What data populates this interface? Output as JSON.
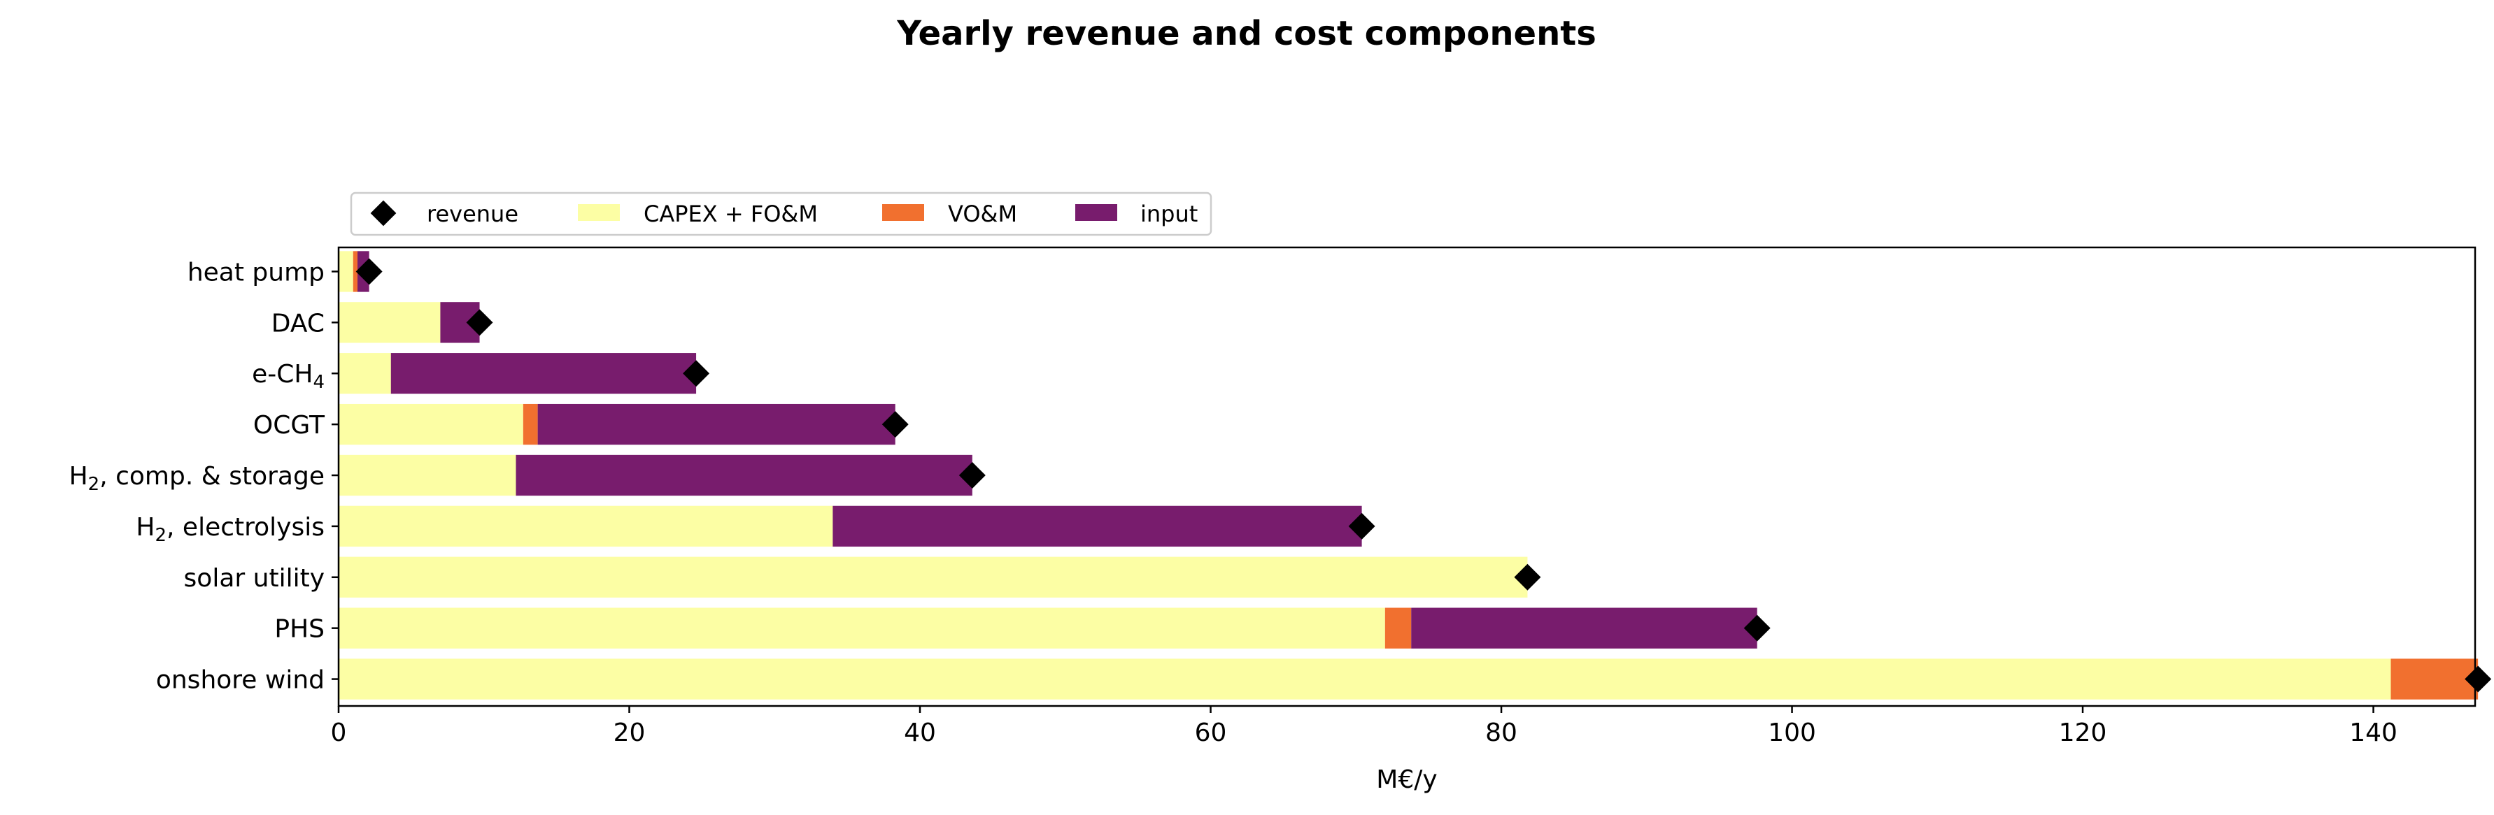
{
  "chart_data": {
    "type": "bar",
    "orientation": "horizontal",
    "stacked": true,
    "title": "Yearly revenue and cost components",
    "xlabel": "M€/y",
    "ylabel": "",
    "xlim": [
      0,
      147
    ],
    "xticks": [
      0,
      20,
      40,
      60,
      80,
      100,
      120,
      140
    ],
    "categories": [
      "heat pump",
      "DAC",
      "e-CH4",
      "OCGT",
      "H2, comp. & storage",
      "H2, electrolysis",
      "solar utility",
      "PHS",
      "onshore wind"
    ],
    "category_labels": [
      {
        "text": "heat pump",
        "sub": "",
        "rest": ""
      },
      {
        "text": "DAC",
        "sub": "",
        "rest": ""
      },
      {
        "text": "e-CH",
        "sub": "4",
        "rest": ""
      },
      {
        "text": "OCGT",
        "sub": "",
        "rest": ""
      },
      {
        "text": "H",
        "sub": "2",
        "rest": ", comp. & storage"
      },
      {
        "text": "H",
        "sub": "2",
        "rest": ", electrolysis"
      },
      {
        "text": "solar utility",
        "sub": "",
        "rest": ""
      },
      {
        "text": "PHS",
        "sub": "",
        "rest": ""
      },
      {
        "text": "onshore wind",
        "sub": "",
        "rest": ""
      }
    ],
    "series": [
      {
        "name": "CAPEX + FO&M",
        "color": "#fcfea4",
        "values": [
          1.0,
          7.0,
          3.6,
          12.7,
          12.2,
          34.0,
          81.8,
          72.0,
          141.2
        ]
      },
      {
        "name": "VO&M",
        "color": "#f1702f",
        "values": [
          0.3,
          0.0,
          0.0,
          1.0,
          0.0,
          0.0,
          0.0,
          1.8,
          6.0
        ]
      },
      {
        "name": "input",
        "color": "#781c6d",
        "values": [
          0.8,
          2.7,
          21.0,
          24.6,
          31.4,
          36.4,
          0.0,
          23.8,
          0.0
        ]
      }
    ],
    "revenue": {
      "name": "revenue",
      "color": "#000000",
      "values": [
        2.1,
        9.7,
        24.6,
        38.3,
        43.6,
        70.4,
        81.8,
        97.6,
        147.2
      ]
    },
    "grid": false,
    "legend_position": "top-left"
  }
}
